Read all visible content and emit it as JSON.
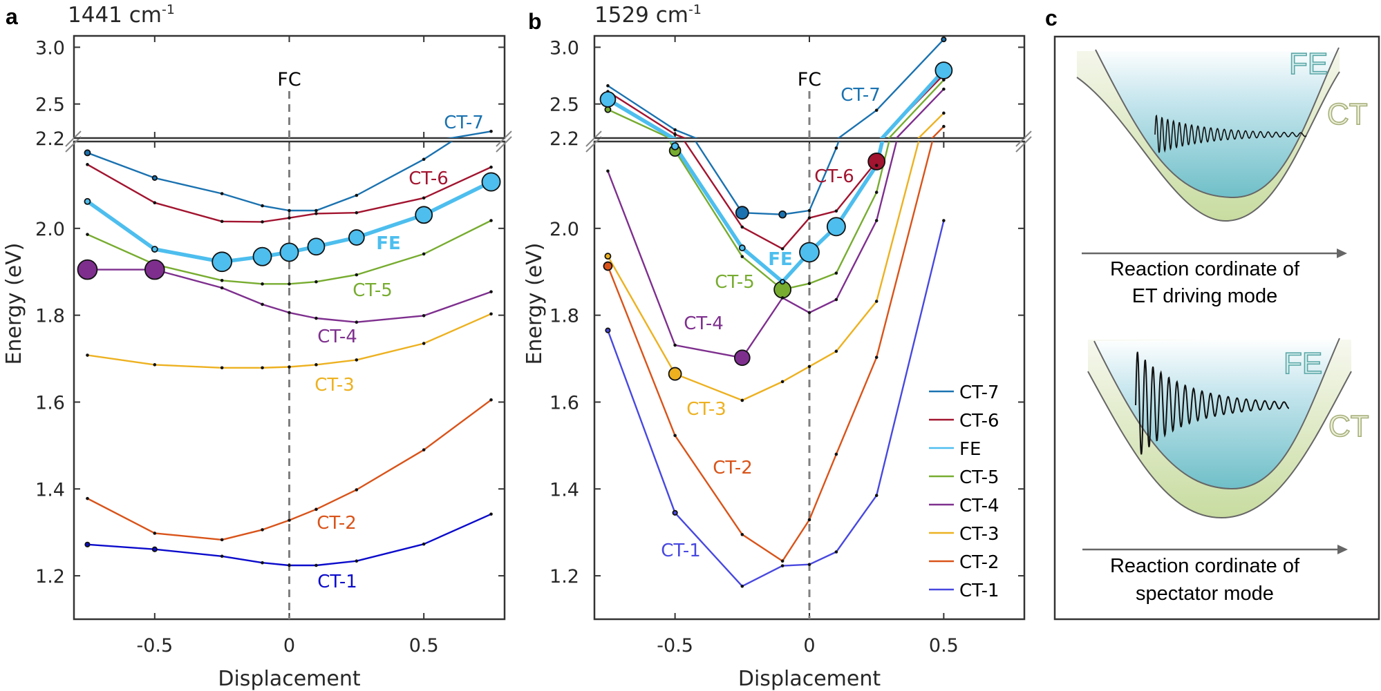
{
  "panels": {
    "a": {
      "letter": "a",
      "title_value": "1441 cm",
      "title_exp": "-1"
    },
    "b": {
      "letter": "b",
      "title_value": "1529 cm",
      "title_exp": "-1"
    },
    "c": {
      "letter": "c"
    }
  },
  "chart_data": [
    {
      "type": "line",
      "panel": "a",
      "title": "1441 cm-1",
      "xlabel": "Displacement",
      "ylabel": "Energy (eV)",
      "xlim": [
        -0.8,
        0.8
      ],
      "broken_y_axis": true,
      "ylim_lower": [
        1.1,
        2.2
      ],
      "ylim_upper": [
        2.2,
        3.1
      ],
      "xticks": [
        -0.5,
        0,
        0.5
      ],
      "xtick_labels": [
        "-0.5",
        "0",
        "0.5"
      ],
      "yticks_upper": [
        3.0,
        2.5,
        2.2
      ],
      "ytick_labels_upper": [
        "3.0",
        "2.5",
        "2.2"
      ],
      "yticks_lower": [
        2.0,
        1.8,
        1.6,
        1.4,
        1.2
      ],
      "ytick_labels_lower": [
        "2.0",
        "1.8",
        "1.6",
        "1.4",
        "1.2"
      ],
      "vline": {
        "x": 0,
        "label": "FC",
        "style": "dashed"
      },
      "grid": false,
      "legend": null,
      "x": [
        -0.75,
        -0.5,
        -0.25,
        -0.1,
        0,
        0.1,
        0.25,
        0.5,
        0.75
      ],
      "series": [
        {
          "name": "CT-7",
          "color": "#1a72b0",
          "values": [
            2.174,
            2.116,
            2.08,
            2.052,
            2.041,
            2.041,
            2.076,
            2.159,
            2.259
          ],
          "marker_size_rel": [
            0.27,
            0.2,
            0,
            0,
            0,
            0,
            0,
            0,
            0
          ]
        },
        {
          "name": "CT-6",
          "color": "#a2142f",
          "values": [
            2.147,
            2.059,
            2.016,
            2.015,
            2.024,
            2.034,
            2.036,
            2.07,
            2.141
          ],
          "marker_size_rel": [
            0,
            0,
            0,
            0,
            0,
            0,
            0,
            0,
            0
          ]
        },
        {
          "name": "CT-5",
          "color": "#77ac30",
          "values": [
            1.986,
            1.917,
            1.88,
            1.872,
            1.872,
            1.877,
            1.893,
            1.941,
            2.018
          ],
          "marker_size_rel": [
            0,
            0.2,
            0,
            0,
            0,
            0,
            0,
            0,
            0
          ]
        },
        {
          "name": "CT-4",
          "color": "#7e2f8e",
          "values": [
            1.905,
            1.905,
            1.863,
            1.825,
            1.806,
            1.793,
            1.784,
            1.799,
            1.854
          ],
          "marker_size_rel": [
            0.93,
            0.93,
            0,
            0,
            0,
            0,
            0,
            0,
            0
          ]
        },
        {
          "name": "CT-3",
          "color": "#edb120",
          "values": [
            1.708,
            1.686,
            1.679,
            1.679,
            1.681,
            1.686,
            1.697,
            1.735,
            1.803
          ],
          "marker_size_rel": [
            0,
            0,
            0,
            0,
            0,
            0,
            0,
            0,
            0
          ]
        },
        {
          "name": "CT-2",
          "color": "#d95319",
          "values": [
            1.378,
            1.298,
            1.283,
            1.306,
            1.328,
            1.353,
            1.398,
            1.49,
            1.605
          ],
          "marker_size_rel": [
            0,
            0,
            0,
            0,
            0,
            0,
            0,
            0,
            0
          ]
        },
        {
          "name": "CT-1",
          "color": "#0b0bcc",
          "values": [
            1.272,
            1.261,
            1.245,
            1.23,
            1.224,
            1.224,
            1.234,
            1.273,
            1.342
          ],
          "marker_size_rel": [
            0.2,
            0.2,
            0,
            0,
            0,
            0,
            0,
            0,
            0
          ]
        },
        {
          "name": "FE",
          "color": "#4dbeee",
          "values": [
            2.062,
            1.952,
            1.923,
            1.935,
            1.945,
            1.958,
            1.979,
            2.031,
            2.107
          ],
          "marker_size_rel": [
            0.27,
            0.27,
            0.93,
            0.87,
            0.87,
            0.8,
            0.73,
            0.8,
            0.87
          ],
          "bold": true
        }
      ]
    },
    {
      "type": "line",
      "panel": "b",
      "title": "1529 cm-1",
      "xlabel": "Displacement",
      "ylabel": "Energy (eV)",
      "xlim": [
        -0.8,
        0.8
      ],
      "broken_y_axis": true,
      "ylim_lower": [
        1.1,
        2.2
      ],
      "ylim_upper": [
        2.2,
        3.1
      ],
      "xticks": [
        -0.5,
        0,
        0.5
      ],
      "xtick_labels": [
        "-0.5",
        "0",
        "0.5"
      ],
      "yticks_upper": [
        3.0,
        2.5,
        2.2
      ],
      "ytick_labels_upper": [
        "3.0",
        "2.5",
        "2.2"
      ],
      "yticks_lower": [
        2.0,
        1.8,
        1.6,
        1.4,
        1.2
      ],
      "ytick_labels_lower": [
        "2.0",
        "1.8",
        "1.6",
        "1.4",
        "1.2"
      ],
      "vline": {
        "x": 0,
        "label": "FC",
        "style": "dashed"
      },
      "grid": false,
      "legend": {
        "placement": "bottom-right",
        "entries": [
          "CT-7",
          "CT-6",
          "FE",
          "CT-5",
          "CT-4",
          "CT-3",
          "CT-2",
          "CT-1"
        ]
      },
      "x": [
        -0.75,
        -0.5,
        -0.25,
        -0.1,
        0,
        0.1,
        0.25,
        0.5
      ],
      "series": [
        {
          "name": "CT-7",
          "color": "#1a72b0",
          "values": [
            2.661,
            2.273,
            2.036,
            2.032,
            2.041,
            2.185,
            2.445,
            3.069
          ],
          "marker_size_rel": [
            0,
            0,
            0.6,
            0.33,
            0,
            0,
            0,
            0.2
          ]
        },
        {
          "name": "CT-6",
          "color": "#a2142f",
          "values": [
            2.61,
            2.233,
            2.003,
            1.953,
            2.024,
            2.04,
            2.154,
            2.759
          ],
          "marker_size_rel": [
            0,
            0,
            0,
            0,
            0,
            0,
            0.8,
            0
          ]
        },
        {
          "name": "CT-5",
          "color": "#77ac30",
          "values": [
            2.451,
            2.179,
            1.935,
            1.859,
            1.873,
            1.897,
            2.083,
            2.712
          ],
          "marker_size_rel": [
            0.27,
            0.53,
            0,
            0.8,
            0,
            0,
            0,
            0
          ]
        },
        {
          "name": "CT-4",
          "color": "#7e2f8e",
          "values": [
            2.132,
            1.731,
            1.702,
            1.84,
            1.806,
            1.836,
            2.018,
            2.631
          ],
          "marker_size_rel": [
            0,
            0,
            0.73,
            0,
            0,
            0,
            0,
            0
          ]
        },
        {
          "name": "CT-3",
          "color": "#edb120",
          "values": [
            1.936,
            1.665,
            1.604,
            1.647,
            1.682,
            1.717,
            1.832,
            2.42
          ],
          "marker_size_rel": [
            0.27,
            0.6,
            0,
            0,
            0,
            0,
            0,
            0
          ]
        },
        {
          "name": "CT-2",
          "color": "#d95319",
          "values": [
            1.913,
            1.523,
            1.295,
            1.234,
            1.329,
            1.48,
            1.703,
            2.302
          ],
          "marker_size_rel": [
            0.4,
            0,
            0,
            0,
            0,
            0,
            0,
            0
          ]
        },
        {
          "name": "CT-1",
          "color": "#4848e0",
          "values": [
            1.765,
            1.345,
            1.176,
            1.223,
            1.226,
            1.255,
            1.385,
            2.018
          ],
          "marker_size_rel": [
            0.2,
            0.2,
            0,
            0,
            0,
            0,
            0,
            0
          ]
        },
        {
          "name": "FE",
          "color": "#4dbeee",
          "values": [
            2.541,
            2.189,
            1.955,
            1.877,
            1.945,
            2.004,
            2.145,
            2.796
          ],
          "marker_size_rel": [
            0.73,
            0.33,
            0.27,
            0.2,
            0.93,
            0.87,
            0,
            0.8
          ],
          "bold": true
        }
      ]
    }
  ],
  "panel_c": {
    "top": {
      "state_upper": "FE",
      "state_lower": "CT",
      "axis_line1": "Reaction cordinate of",
      "axis_line2": "ET driving mode"
    },
    "bottom": {
      "state_upper": "FE",
      "state_lower": "CT",
      "axis_line1": "Reaction cordinate of",
      "axis_line2": "spectator mode"
    },
    "colors": {
      "fe_fill": "#6fbfc8",
      "ct_fill": "#c8dca0",
      "fe_text": "#5aa7a7",
      "ct_text": "#a6b07a"
    }
  }
}
